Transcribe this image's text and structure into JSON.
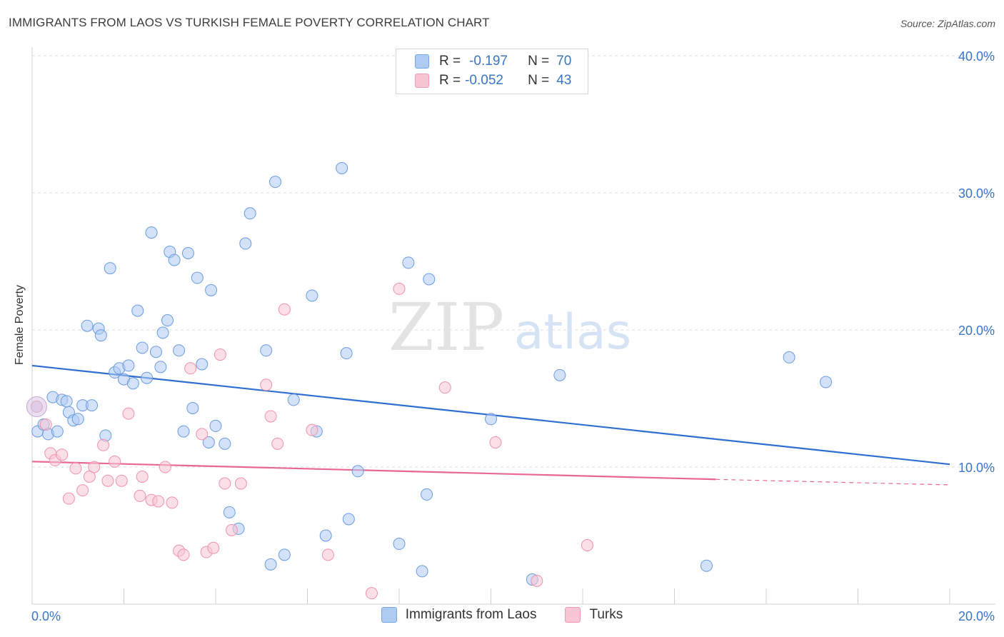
{
  "header": {
    "title": "IMMIGRANTS FROM LAOS VS TURKISH FEMALE POVERTY CORRELATION CHART",
    "source": "Source: ZipAtlas.com"
  },
  "watermark": {
    "zip": "ZIP",
    "atlas": "atlas"
  },
  "legend": {
    "rows": [
      {
        "r_label": "R =",
        "r_value": "-0.197",
        "n_label": "N =",
        "n_value": "70",
        "color": "#aecbf2",
        "border": "#7aa6e0"
      },
      {
        "r_label": "R =",
        "r_value": "-0.052",
        "n_label": "N =",
        "n_value": "43",
        "color": "#f7c5d4",
        "border": "#ee9ab4"
      }
    ]
  },
  "bottom_legend": {
    "items": [
      {
        "label": "Immigrants from Laos",
        "color": "#aecbf2",
        "border": "#7aa6e0"
      },
      {
        "label": "Turks",
        "color": "#f7c5d4",
        "border": "#ee9ab4"
      }
    ]
  },
  "chart_data": {
    "type": "scatter",
    "title": "IMMIGRANTS FROM LAOS VS TURKISH FEMALE POVERTY CORRELATION CHART",
    "xlabel": "",
    "ylabel": "Female Poverty",
    "xlim": [
      0,
      20
    ],
    "ylim": [
      0,
      40
    ],
    "x_tick_labels": [
      "0.0%",
      "20.0%"
    ],
    "y_ticks": [
      10,
      20,
      30,
      40
    ],
    "y_tick_labels": [
      "10.0%",
      "20.0%",
      "30.0%",
      "40.0%"
    ],
    "grid": true,
    "legend_position": "top-center",
    "series": [
      {
        "name": "Immigrants from Laos",
        "color": "#6a9be0",
        "fill": "#aecbf2",
        "trend": {
          "x": [
            0,
            20
          ],
          "y": [
            17.4,
            10.2
          ],
          "color": "#2f6fd0"
        },
        "points": [
          [
            0.1,
            14.4
          ],
          [
            0.12,
            12.6
          ],
          [
            0.25,
            13.1
          ],
          [
            0.35,
            12.4
          ],
          [
            0.45,
            15.1
          ],
          [
            0.55,
            12.6
          ],
          [
            0.65,
            14.9
          ],
          [
            0.75,
            14.8
          ],
          [
            0.8,
            14.0
          ],
          [
            0.9,
            13.4
          ],
          [
            1.0,
            13.5
          ],
          [
            1.1,
            14.5
          ],
          [
            1.2,
            20.3
          ],
          [
            1.3,
            14.5
          ],
          [
            1.45,
            20.1
          ],
          [
            1.5,
            19.6
          ],
          [
            1.6,
            12.3
          ],
          [
            1.7,
            24.5
          ],
          [
            1.8,
            16.9
          ],
          [
            1.9,
            17.2
          ],
          [
            2.0,
            16.4
          ],
          [
            2.1,
            17.4
          ],
          [
            2.2,
            16.1
          ],
          [
            2.3,
            21.4
          ],
          [
            2.4,
            18.7
          ],
          [
            2.5,
            16.5
          ],
          [
            2.6,
            27.1
          ],
          [
            2.7,
            18.4
          ],
          [
            2.8,
            17.3
          ],
          [
            2.85,
            19.8
          ],
          [
            2.95,
            20.7
          ],
          [
            3.0,
            25.7
          ],
          [
            3.1,
            25.1
          ],
          [
            3.2,
            18.5
          ],
          [
            3.3,
            12.6
          ],
          [
            3.4,
            25.6
          ],
          [
            3.5,
            14.3
          ],
          [
            3.6,
            23.8
          ],
          [
            3.7,
            17.5
          ],
          [
            3.85,
            11.8
          ],
          [
            3.9,
            22.9
          ],
          [
            4.0,
            13.0
          ],
          [
            4.2,
            11.7
          ],
          [
            4.3,
            6.7
          ],
          [
            4.5,
            5.5
          ],
          [
            4.65,
            26.3
          ],
          [
            4.75,
            28.5
          ],
          [
            5.1,
            18.5
          ],
          [
            5.2,
            2.9
          ],
          [
            5.3,
            30.8
          ],
          [
            5.5,
            3.6
          ],
          [
            5.7,
            14.9
          ],
          [
            6.1,
            22.5
          ],
          [
            6.2,
            12.6
          ],
          [
            6.4,
            5.0
          ],
          [
            6.75,
            31.8
          ],
          [
            6.85,
            18.3
          ],
          [
            6.9,
            6.2
          ],
          [
            7.1,
            9.7
          ],
          [
            8.0,
            4.4
          ],
          [
            8.2,
            24.9
          ],
          [
            8.5,
            2.4
          ],
          [
            8.6,
            8.0
          ],
          [
            8.65,
            23.7
          ],
          [
            10.0,
            13.5
          ],
          [
            10.9,
            1.8
          ],
          [
            11.5,
            16.7
          ],
          [
            14.7,
            2.8
          ],
          [
            16.5,
            18.0
          ],
          [
            17.3,
            16.2
          ]
        ]
      },
      {
        "name": "Turks",
        "color": "#ee92ae",
        "fill": "#f7c5d4",
        "trend": {
          "x": [
            0,
            14.9
          ],
          "y": [
            10.4,
            9.1
          ],
          "dashed_to_x": 20,
          "dashed_to_y": 8.7,
          "color": "#e8688f"
        },
        "points": [
          [
            0.1,
            14.4
          ],
          [
            0.3,
            13.1
          ],
          [
            0.4,
            11.0
          ],
          [
            0.5,
            10.5
          ],
          [
            0.65,
            10.9
          ],
          [
            0.8,
            7.7
          ],
          [
            0.95,
            9.9
          ],
          [
            1.1,
            8.3
          ],
          [
            1.25,
            9.3
          ],
          [
            1.35,
            10.0
          ],
          [
            1.55,
            11.6
          ],
          [
            1.65,
            9.0
          ],
          [
            1.8,
            10.4
          ],
          [
            1.95,
            9.0
          ],
          [
            2.1,
            13.9
          ],
          [
            2.35,
            7.9
          ],
          [
            2.4,
            9.3
          ],
          [
            2.6,
            7.6
          ],
          [
            2.75,
            7.5
          ],
          [
            2.9,
            10.0
          ],
          [
            3.05,
            7.4
          ],
          [
            3.2,
            3.9
          ],
          [
            3.3,
            3.6
          ],
          [
            3.45,
            17.2
          ],
          [
            3.7,
            12.4
          ],
          [
            3.8,
            3.8
          ],
          [
            3.95,
            4.1
          ],
          [
            4.1,
            18.2
          ],
          [
            4.2,
            8.8
          ],
          [
            4.35,
            5.4
          ],
          [
            4.55,
            8.8
          ],
          [
            5.1,
            16.0
          ],
          [
            5.2,
            13.7
          ],
          [
            5.35,
            11.7
          ],
          [
            5.5,
            21.5
          ],
          [
            6.1,
            12.7
          ],
          [
            6.45,
            3.6
          ],
          [
            7.4,
            0.8
          ],
          [
            8.0,
            23.0
          ],
          [
            9.0,
            15.8
          ],
          [
            10.1,
            11.8
          ],
          [
            11.0,
            1.7
          ],
          [
            12.1,
            4.3
          ]
        ]
      }
    ]
  }
}
